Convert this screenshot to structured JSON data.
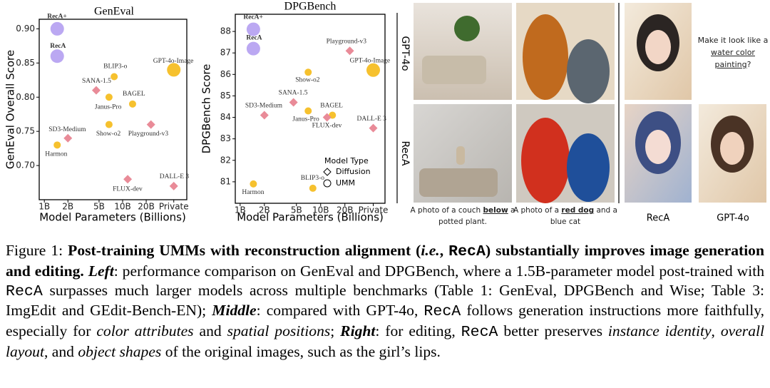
{
  "chart_data": [
    {
      "type": "scatter",
      "title": "GenEval",
      "xlabel": "Model Parameters (Billions)",
      "ylabel": "GenEval Overall Score",
      "xscale": "log",
      "xlim": [
        0.86,
        66
      ],
      "xticks": [
        {
          "value": 1,
          "label": "1B"
        },
        {
          "value": 2,
          "label": "2B"
        },
        {
          "value": 5,
          "label": "5B"
        },
        {
          "value": 10,
          "label": "10B"
        },
        {
          "value": 20,
          "label": "20B"
        },
        {
          "value": 45,
          "label": "Private"
        }
      ],
      "ylim": [
        0.65,
        0.914
      ],
      "yticks": [
        {
          "value": 0.7,
          "label": "0.70"
        },
        0.75,
        {
          "value": 0.8,
          "label": "0.80"
        },
        0.85,
        {
          "value": 0.9,
          "label": "0.90"
        }
      ],
      "points": [
        {
          "label": "RecA+",
          "x": 1.46,
          "y": 0.9,
          "marker": "circle",
          "color": "#bba8f2",
          "size": "large",
          "bold": true
        },
        {
          "label": "RecA",
          "x": 1.46,
          "y": 0.86,
          "marker": "circle",
          "color": "#bba8f2",
          "size": "large",
          "bold": true
        },
        {
          "label": "BLIP3-o",
          "x": 7.8,
          "y": 0.83,
          "marker": "circle",
          "color": "#f6c12e"
        },
        {
          "label": "SANA-1.5",
          "x": 4.6,
          "y": 0.81,
          "marker": "diamond",
          "color": "#e98b98"
        },
        {
          "label": "Janus-Pro",
          "x": 6.7,
          "y": 0.8,
          "marker": "circle",
          "color": "#f6c12e"
        },
        {
          "label": "BAGEL",
          "x": 13.4,
          "y": 0.79,
          "marker": "circle",
          "color": "#f6c12e"
        },
        {
          "label": "SD3-Medium",
          "x": 2,
          "y": 0.74,
          "marker": "diamond",
          "color": "#e98b98"
        },
        {
          "label": "Show-o2",
          "x": 6.7,
          "y": 0.76,
          "marker": "circle",
          "color": "#f6c12e"
        },
        {
          "label": "Playground-v3",
          "x": 23,
          "y": 0.76,
          "marker": "diamond",
          "color": "#e98b98"
        },
        {
          "label": "Harmon",
          "x": 1.46,
          "y": 0.73,
          "marker": "circle",
          "color": "#f6c12e"
        },
        {
          "label": "GPT-4o-Image",
          "x": 45,
          "y": 0.84,
          "marker": "circle",
          "color": "#f6c12e",
          "size": "large"
        },
        {
          "label": "FLUX-dev",
          "x": 11.6,
          "y": 0.68,
          "marker": "diamond",
          "color": "#e98b98"
        },
        {
          "label": "DALL-E 3",
          "x": 45,
          "y": 0.67,
          "marker": "diamond",
          "color": "#e98b98"
        }
      ]
    },
    {
      "type": "scatter",
      "title": "DPGBench",
      "xlabel": "Model Parameters (Billions)",
      "ylabel": "DPGBench Score",
      "xscale": "log",
      "xlim": [
        0.87,
        63
      ],
      "xticks": [
        {
          "value": 1,
          "label": "1B"
        },
        {
          "value": 2,
          "label": "2B"
        },
        {
          "value": 5,
          "label": "5B"
        },
        {
          "value": 10,
          "label": "10B"
        },
        {
          "value": 20,
          "label": "20B"
        },
        {
          "value": 45,
          "label": "Private"
        }
      ],
      "ylim": [
        80,
        88.8
      ],
      "yticks": [
        81,
        82,
        83,
        84,
        85,
        86,
        87,
        88
      ],
      "points": [
        {
          "label": "RecA+",
          "x": 1.46,
          "y": 88.1,
          "marker": "circle",
          "color": "#bba8f2",
          "size": "large",
          "bold": true
        },
        {
          "label": "RecA",
          "x": 1.46,
          "y": 87.2,
          "marker": "circle",
          "color": "#bba8f2",
          "size": "large",
          "bold": true
        },
        {
          "label": "Playground-v3",
          "x": 23,
          "y": 87.1,
          "marker": "diamond",
          "color": "#e98b98"
        },
        {
          "label": "GPT-4o-Image",
          "x": 45,
          "y": 86.2,
          "marker": "circle",
          "color": "#f6c12e",
          "size": "large"
        },
        {
          "label": "Show-o2",
          "x": 7,
          "y": 86.1,
          "marker": "circle",
          "color": "#f6c12e"
        },
        {
          "label": "SANA-1.5",
          "x": 4.6,
          "y": 84.7,
          "marker": "diamond",
          "color": "#e98b98"
        },
        {
          "label": "SD3-Medium",
          "x": 2,
          "y": 84.1,
          "marker": "diamond",
          "color": "#e98b98"
        },
        {
          "label": "Janus-Pro",
          "x": 7,
          "y": 84.3,
          "marker": "circle",
          "color": "#f6c12e"
        },
        {
          "label": "BAGEL",
          "x": 14,
          "y": 84.1,
          "marker": "circle",
          "color": "#f6c12e"
        },
        {
          "label": "FLUX-dev",
          "x": 12,
          "y": 84.0,
          "marker": "diamond",
          "color": "#e98b98"
        },
        {
          "label": "DALL-E 3",
          "x": 45,
          "y": 83.5,
          "marker": "diamond",
          "color": "#e98b98"
        },
        {
          "label": "BLIP3-o",
          "x": 8,
          "y": 80.7,
          "marker": "circle",
          "color": "#f6c12e"
        },
        {
          "label": "Harmon",
          "x": 1.46,
          "y": 80.9,
          "marker": "circle",
          "color": "#f6c12e"
        }
      ],
      "legend": {
        "title": "Model Type",
        "entries": [
          {
            "name": "Diffusion",
            "marker": "diamond"
          },
          {
            "name": "UMM",
            "marker": "circle"
          }
        ]
      }
    }
  ],
  "panels": {
    "row_labels": [
      "GPT-4o",
      "RecA"
    ],
    "captions": [
      [
        {
          "text": "A photo of a couch"
        },
        {
          "text": "below",
          "style": "u"
        },
        {
          "text": "a potted plant."
        }
      ],
      [
        {
          "text": "A photo of a"
        },
        {
          "text": "red dog",
          "style": "u"
        },
        {
          "text": "and a blue cat"
        }
      ]
    ],
    "edit_prompt": [
      {
        "text": "Make it look like a "
      },
      {
        "text": "water color painting",
        "style": "u"
      },
      {
        "text": "?"
      }
    ],
    "edit_labels": [
      "RecA",
      "GPT-4o"
    ]
  },
  "caption": [
    {
      "text": "Figure 1: "
    },
    {
      "text": "Post-training UMMs with reconstruction alignment (",
      "style": "b"
    },
    {
      "text": "i.e.",
      "style": "bi"
    },
    {
      "text": ", ",
      "style": "b"
    },
    {
      "text": "RecA",
      "style": "bm"
    },
    {
      "text": ") substantially improves image generation and editing. ",
      "style": "b"
    },
    {
      "text": "Left",
      "style": "bi"
    },
    {
      "text": ": performance comparison on GenEval and DPGBench, where a 1.5B-parameter model post-trained with "
    },
    {
      "text": "RecA",
      "style": "m"
    },
    {
      "text": " surpasses much larger models across multiple benchmarks (Table 1: GenEval, DPGBench and Wise; Table 3: ImgEdit and GEdit-Bench-EN); "
    },
    {
      "text": "Middle",
      "style": "bi"
    },
    {
      "text": ": compared with GPT-4o, "
    },
    {
      "text": "RecA",
      "style": "m"
    },
    {
      "text": " follows generation instructions more faithfully, especially for "
    },
    {
      "text": "color attributes",
      "style": "i"
    },
    {
      "text": " and "
    },
    {
      "text": "spatial positions",
      "style": "i"
    },
    {
      "text": "; "
    },
    {
      "text": "Right",
      "style": "bi"
    },
    {
      "text": ": for editing, "
    },
    {
      "text": "RecA",
      "style": "m"
    },
    {
      "text": " better preserves "
    },
    {
      "text": "instance identity",
      "style": "i"
    },
    {
      "text": ", "
    },
    {
      "text": "overall layout",
      "style": "i"
    },
    {
      "text": ", and "
    },
    {
      "text": "object shapes",
      "style": "i"
    },
    {
      "text": " of the original images, such as the girl’s lips."
    }
  ]
}
